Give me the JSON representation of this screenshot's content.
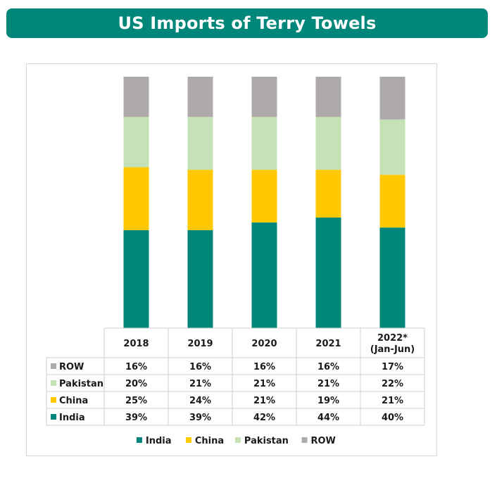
{
  "title": "US Imports of Terry Towels",
  "chart_data": {
    "type": "bar",
    "stacked": true,
    "normalized": true,
    "title": "US Imports of Terry Towels",
    "categories": [
      [
        "2018"
      ],
      [
        "2019"
      ],
      [
        "2020"
      ],
      [
        "2021"
      ],
      [
        "2022*",
        "(Jan-Jun)"
      ]
    ],
    "series": [
      {
        "name": "India",
        "color": "#00877a",
        "values": [
          39,
          39,
          42,
          44,
          40
        ],
        "labels": [
          "39%",
          "39%",
          "42%",
          "44%",
          "40%"
        ]
      },
      {
        "name": "China",
        "color": "#ffc800",
        "values": [
          25,
          24,
          21,
          19,
          21
        ],
        "labels": [
          "25%",
          "24%",
          "21%",
          "19%",
          "21%"
        ]
      },
      {
        "name": "Pakistan",
        "color": "#c5e2b6",
        "values": [
          20,
          21,
          21,
          21,
          22
        ],
        "labels": [
          "20%",
          "21%",
          "21%",
          "21%",
          "22%"
        ]
      },
      {
        "name": "ROW",
        "color": "#aeaaaa",
        "values": [
          16,
          16,
          16,
          16,
          17
        ],
        "labels": [
          "16%",
          "16%",
          "16%",
          "16%",
          "17%"
        ]
      }
    ],
    "table_row_order": [
      "ROW",
      "Pakistan",
      "China",
      "India"
    ],
    "legend_order": [
      "India",
      "China",
      "Pakistan",
      "ROW"
    ],
    "legend_position": "bottom",
    "data_table": true,
    "grid": false
  }
}
